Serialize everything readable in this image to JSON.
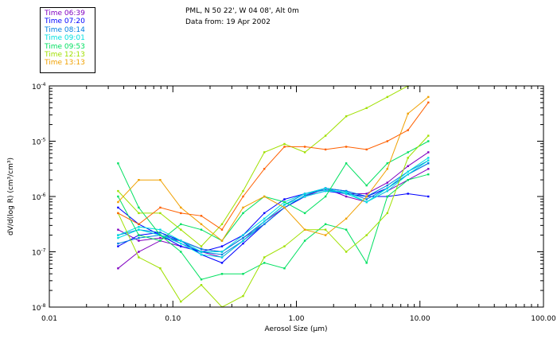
{
  "header": {
    "title_line1": "PML, N 50 22', W 04 08', Alt 0m",
    "title_line2": "Data from: 19 Apr 2002"
  },
  "legend": [
    {
      "label": "Time 06:39",
      "color": "#8000c0"
    },
    {
      "label": "Time 07:20",
      "color": "#0000ff"
    },
    {
      "label": "Time 08:14",
      "color": "#0080e0"
    },
    {
      "label": "Time 09:01",
      "color": "#00e0e0"
    },
    {
      "label": "Time 09:53",
      "color": "#00e060"
    },
    {
      "label": "Time 12:13",
      "color": "#a0e000"
    },
    {
      "label": "Time 13:13",
      "color": "#f0a000"
    }
  ],
  "chart_data": {
    "type": "line",
    "xscale": "log",
    "yscale": "log",
    "xlabel": "Aerosol Size (µm)",
    "ylabel": "dV/d(log R) (cm³/cm³)",
    "xlim": [
      0.01,
      100
    ],
    "ylim": [
      1e-08,
      0.0001
    ],
    "xticks": [
      {
        "value": 0.01,
        "label": "0.01"
      },
      {
        "value": 0.1,
        "label": "0.10"
      },
      {
        "value": 1,
        "label": "1.00"
      },
      {
        "value": 10,
        "label": "10.00"
      },
      {
        "value": 100,
        "label": "100.00"
      }
    ],
    "yticks": [
      {
        "value": 1e-08,
        "base": "10",
        "exp": "-8"
      },
      {
        "value": 1e-07,
        "base": "10",
        "exp": "-7"
      },
      {
        "value": 1e-06,
        "base": "10",
        "exp": "-6"
      },
      {
        "value": 1e-05,
        "base": "10",
        "exp": "-5"
      },
      {
        "value": 0.0001,
        "base": "10",
        "exp": "-4"
      }
    ],
    "x": [
      0.036,
      0.053,
      0.079,
      0.116,
      0.17,
      0.25,
      0.37,
      0.55,
      0.8,
      1.17,
      1.72,
      2.53,
      3.7,
      5.45,
      8.0,
      11.7
    ],
    "series_log10": [
      {
        "name": "Time 06:39",
        "color": "#8000c0",
        "values": [
          -6.6,
          -6.8,
          -6.75,
          -6.8,
          -6.95,
          -7.0,
          -6.75,
          -6.5,
          -6.2,
          -6.0,
          -5.85,
          -5.95,
          -5.95,
          -5.75,
          -5.45,
          -5.2
        ]
      },
      {
        "name": "Time 06:39",
        "color": "#8000c0",
        "values": [
          -7.3,
          -7.0,
          -6.8,
          -6.9,
          -7.0,
          -7.1,
          -6.8,
          -6.45,
          -6.2,
          -6.0,
          -5.85,
          -6.0,
          -6.1,
          -5.9,
          -5.7,
          -5.5
        ]
      },
      {
        "name": "Time 07:20",
        "color": "#0000ff",
        "values": [
          -6.9,
          -6.7,
          -6.65,
          -6.8,
          -7.05,
          -7.2,
          -6.85,
          -6.5,
          -6.2,
          -6.0,
          -5.9,
          -5.95,
          -6.0,
          -5.85,
          -5.6,
          -5.4
        ]
      },
      {
        "name": "Time 07:20",
        "color": "#0000ff",
        "values": [
          -6.2,
          -6.5,
          -6.7,
          -6.9,
          -7.0,
          -6.9,
          -6.7,
          -6.3,
          -6.05,
          -5.95,
          -5.85,
          -5.9,
          -6.0,
          -6.0,
          -5.95,
          -6.0
        ]
      },
      {
        "name": "Time 08:14",
        "color": "#0080e0",
        "values": [
          -6.7,
          -6.6,
          -6.65,
          -6.85,
          -7.0,
          -7.05,
          -6.8,
          -6.5,
          -6.2,
          -5.98,
          -5.85,
          -5.9,
          -6.0,
          -5.8,
          -5.55,
          -5.35
        ]
      },
      {
        "name": "Time 08:14",
        "color": "#0080e0",
        "values": [
          -6.85,
          -6.75,
          -6.7,
          -6.8,
          -6.95,
          -7.0,
          -6.75,
          -6.45,
          -6.15,
          -5.95,
          -5.88,
          -5.92,
          -6.05,
          -5.85,
          -5.6,
          -5.4
        ]
      },
      {
        "name": "Time 09:01",
        "color": "#00e0e0",
        "values": [
          -6.7,
          -6.55,
          -6.6,
          -6.8,
          -7.0,
          -7.0,
          -6.7,
          -6.4,
          -6.1,
          -5.95,
          -5.85,
          -5.95,
          -6.1,
          -5.85,
          -5.55,
          -5.3
        ]
      },
      {
        "name": "Time 09:01",
        "color": "#00e0e0",
        "values": [
          -6.75,
          -6.6,
          -6.7,
          -6.85,
          -7.05,
          -7.1,
          -6.8,
          -6.45,
          -6.15,
          -6.0,
          -5.9,
          -5.92,
          -6.1,
          -5.9,
          -5.6,
          -5.35
        ]
      },
      {
        "name": "Time 09:53",
        "color": "#00e060",
        "values": [
          -5.4,
          -6.2,
          -6.7,
          -7.0,
          -7.5,
          -7.4,
          -7.4,
          -7.2,
          -7.3,
          -6.8,
          -6.5,
          -6.6,
          -7.2,
          -6.0,
          -5.7,
          -5.6
        ]
      },
      {
        "name": "Time 09:53",
        "color": "#00e060",
        "values": [
          -6.0,
          -6.7,
          -6.8,
          -6.5,
          -6.6,
          -6.8,
          -6.3,
          -6.0,
          -6.1,
          -6.3,
          -6.0,
          -5.4,
          -5.8,
          -5.4,
          -5.2,
          -5.0
        ]
      },
      {
        "name": "Time 12:13",
        "color": "#a0e000",
        "values": [
          -6.3,
          -7.1,
          -7.3,
          -7.9,
          -7.6,
          -8.0,
          -7.8,
          -7.1,
          -6.9,
          -6.6,
          -6.6,
          -7.0,
          -6.7,
          -6.3,
          -5.3,
          -4.9
        ]
      },
      {
        "name": "Time 12:13",
        "color": "#a0e000",
        "values": [
          -5.9,
          -6.3,
          -6.3,
          -6.6,
          -6.9,
          -6.5,
          -5.9,
          -5.2,
          -5.05,
          -5.2,
          -4.9,
          -4.55,
          -4.4,
          -4.2,
          -4.0,
          -3.9
        ]
      },
      {
        "name": "Time 13:13",
        "color": "#f0a000",
        "values": [
          -6.1,
          -5.7,
          -5.7,
          -6.2,
          -6.5,
          -6.8,
          -6.2,
          -6.0,
          -6.2,
          -6.6,
          -6.7,
          -6.4,
          -6.0,
          -5.5,
          -4.5,
          -4.2
        ]
      },
      {
        "name": "Time 13:13",
        "color": "#ff6000",
        "values": [
          -6.3,
          -6.5,
          -6.2,
          -6.3,
          -6.35,
          -6.6,
          -6.0,
          -5.5,
          -5.1,
          -5.1,
          -5.15,
          -5.1,
          -5.15,
          -5.0,
          -4.8,
          -4.3
        ]
      }
    ]
  }
}
